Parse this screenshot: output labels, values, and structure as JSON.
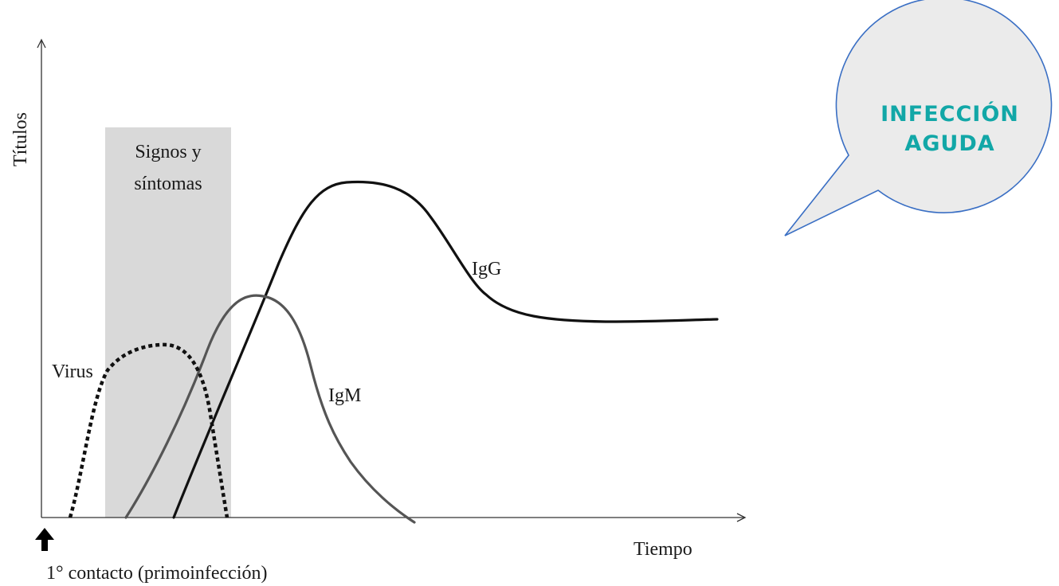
{
  "axes": {
    "y_label": "Títulos",
    "x_label": "Tiempo"
  },
  "shaded_region": {
    "line1": "Signos y",
    "line2": "síntomas"
  },
  "curves": {
    "virus": "Virus",
    "igm": "IgM",
    "igg": "IgG"
  },
  "first_contact": {
    "label": "1° contacto (primoinfección)"
  },
  "callout": {
    "line1": "INFECCIÓN",
    "line2": "AGUDA",
    "text_color": "#12a7a7",
    "border_color": "#3a6fc4",
    "fill_color": "#ebebeb"
  }
}
